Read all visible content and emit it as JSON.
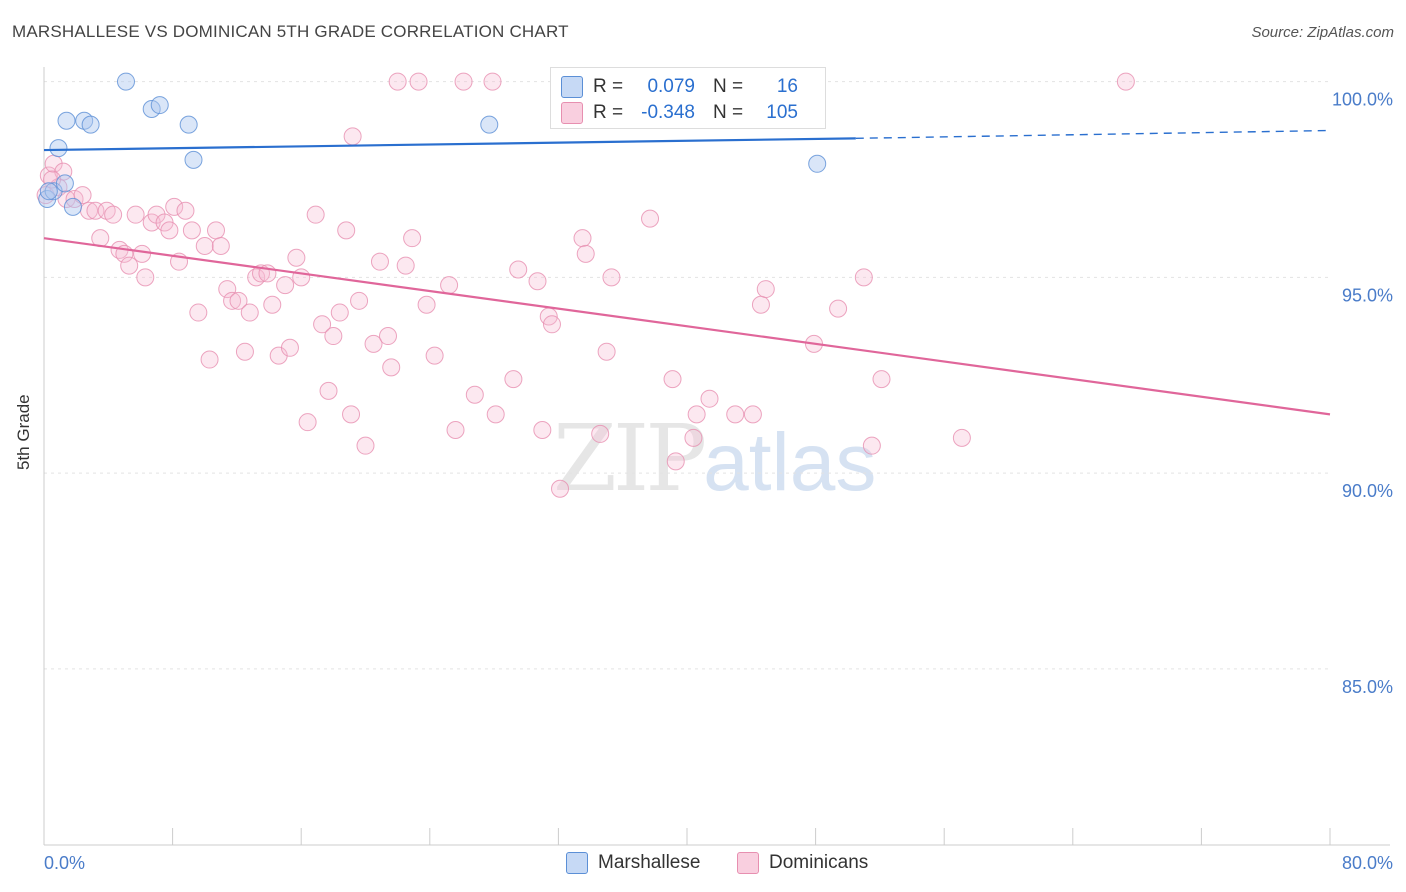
{
  "title": "MARSHALLESE VS DOMINICAN 5TH GRADE CORRELATION CHART",
  "source": "Source: ZipAtlas.com",
  "watermark": {
    "zip": "ZIP",
    "atlas": "atlas"
  },
  "legend_stats": [
    {
      "r_label": "R =",
      "r_value": "0.079",
      "n_label": "N =",
      "n_value": "16"
    },
    {
      "r_label": "R =",
      "r_value": "-0.348",
      "n_label": "N =",
      "n_value": "105"
    }
  ],
  "chart_data": {
    "type": "scatter",
    "title": "MARSHALLESE VS DOMINICAN 5TH GRADE CORRELATION CHART",
    "xlabel": "",
    "ylabel": "5th Grade",
    "xlim": [
      0,
      80
    ],
    "ylim": [
      80.5,
      100.5
    ],
    "x_tick_labels": [
      "0.0%",
      "80.0%"
    ],
    "y_ticks": [
      100,
      95,
      90,
      85
    ],
    "y_tick_labels": [
      "100.0%",
      "95.0%",
      "90.0%",
      "85.0%"
    ],
    "grid": true,
    "legend_position": "bottom",
    "colors": {
      "marshallese": "#5b8fd6",
      "dominicans": "#e78fb0",
      "marshallese_line": "#2a6fcf",
      "dominicans_line": "#e0669a",
      "tick_label": "#4a7cc9"
    },
    "series": [
      {
        "name": "Marshallese",
        "r": 0.079,
        "n": 16,
        "trend": {
          "x": [
            0,
            50.5
          ],
          "y": [
            98.25,
            98.55
          ],
          "dashed_to_x": 80,
          "dashed_y": 98.75
        },
        "points": [
          [
            0.2,
            97.0
          ],
          [
            0.6,
            97.2
          ],
          [
            0.9,
            98.3
          ],
          [
            1.3,
            97.4
          ],
          [
            1.4,
            99.0
          ],
          [
            1.8,
            96.8
          ],
          [
            2.5,
            99.0
          ],
          [
            2.9,
            98.9
          ],
          [
            5.1,
            100.0
          ],
          [
            6.7,
            99.3
          ],
          [
            7.2,
            99.4
          ],
          [
            9.0,
            98.9
          ],
          [
            9.3,
            98.0
          ],
          [
            27.7,
            98.9
          ],
          [
            48.1,
            97.9
          ],
          [
            0.3,
            97.2
          ]
        ]
      },
      {
        "name": "Dominicans",
        "r": -0.348,
        "n": 105,
        "trend": {
          "x": [
            0,
            80
          ],
          "y": [
            96.0,
            91.5
          ]
        },
        "points": [
          [
            0.1,
            97.1
          ],
          [
            0.3,
            97.6
          ],
          [
            0.6,
            97.9
          ],
          [
            0.9,
            97.3
          ],
          [
            1.2,
            97.7
          ],
          [
            1.4,
            97.0
          ],
          [
            1.9,
            97.0
          ],
          [
            2.4,
            97.1
          ],
          [
            2.8,
            96.7
          ],
          [
            3.2,
            96.7
          ],
          [
            3.5,
            96.0
          ],
          [
            3.9,
            96.7
          ],
          [
            4.3,
            96.6
          ],
          [
            4.7,
            95.7
          ],
          [
            5.0,
            95.6
          ],
          [
            5.3,
            95.3
          ],
          [
            5.7,
            96.6
          ],
          [
            6.1,
            95.6
          ],
          [
            6.3,
            95.0
          ],
          [
            6.7,
            96.4
          ],
          [
            7.0,
            96.6
          ],
          [
            7.5,
            96.4
          ],
          [
            7.8,
            96.2
          ],
          [
            8.1,
            96.8
          ],
          [
            8.4,
            95.4
          ],
          [
            8.8,
            96.7
          ],
          [
            9.2,
            96.2
          ],
          [
            9.6,
            94.1
          ],
          [
            10.0,
            95.8
          ],
          [
            10.3,
            92.9
          ],
          [
            10.7,
            96.2
          ],
          [
            11.0,
            95.8
          ],
          [
            11.4,
            94.7
          ],
          [
            11.7,
            94.4
          ],
          [
            12.1,
            94.4
          ],
          [
            12.5,
            93.1
          ],
          [
            12.8,
            94.1
          ],
          [
            13.2,
            95.0
          ],
          [
            13.5,
            95.1
          ],
          [
            13.9,
            95.1
          ],
          [
            14.2,
            94.3
          ],
          [
            14.6,
            93.0
          ],
          [
            15.0,
            94.8
          ],
          [
            15.3,
            93.2
          ],
          [
            15.7,
            95.5
          ],
          [
            16.0,
            95.0
          ],
          [
            16.4,
            91.3
          ],
          [
            16.9,
            96.6
          ],
          [
            17.3,
            93.8
          ],
          [
            17.7,
            92.1
          ],
          [
            18.0,
            93.5
          ],
          [
            18.4,
            94.1
          ],
          [
            18.8,
            96.2
          ],
          [
            19.1,
            91.5
          ],
          [
            19.2,
            98.6
          ],
          [
            19.6,
            94.4
          ],
          [
            20.0,
            90.7
          ],
          [
            20.5,
            93.3
          ],
          [
            20.9,
            95.4
          ],
          [
            21.4,
            93.5
          ],
          [
            21.6,
            92.7
          ],
          [
            22.0,
            100.0
          ],
          [
            22.5,
            95.3
          ],
          [
            22.9,
            96.0
          ],
          [
            23.3,
            100.0
          ],
          [
            23.8,
            94.3
          ],
          [
            24.3,
            93.0
          ],
          [
            25.2,
            94.8
          ],
          [
            25.6,
            91.1
          ],
          [
            26.1,
            100.0
          ],
          [
            26.8,
            92.0
          ],
          [
            27.9,
            100.0
          ],
          [
            28.1,
            91.5
          ],
          [
            29.2,
            92.4
          ],
          [
            29.5,
            95.2
          ],
          [
            30.7,
            94.9
          ],
          [
            31.0,
            91.1
          ],
          [
            31.4,
            94.0
          ],
          [
            31.6,
            93.8
          ],
          [
            32.1,
            89.6
          ],
          [
            32.6,
            100.0
          ],
          [
            33.5,
            96.0
          ],
          [
            33.7,
            95.6
          ],
          [
            34.6,
            91.0
          ],
          [
            35.0,
            93.1
          ],
          [
            35.3,
            95.0
          ],
          [
            37.7,
            96.5
          ],
          [
            39.1,
            92.4
          ],
          [
            39.3,
            90.3
          ],
          [
            40.4,
            90.9
          ],
          [
            40.6,
            91.5
          ],
          [
            41.4,
            91.9
          ],
          [
            43.0,
            91.5
          ],
          [
            44.1,
            91.5
          ],
          [
            44.2,
            100.0
          ],
          [
            44.6,
            94.3
          ],
          [
            44.9,
            94.7
          ],
          [
            47.9,
            93.3
          ],
          [
            49.4,
            94.2
          ],
          [
            51.0,
            95.0
          ],
          [
            51.5,
            90.7
          ],
          [
            52.1,
            92.4
          ],
          [
            57.1,
            90.9
          ],
          [
            67.3,
            100.0
          ],
          [
            0.5,
            97.5
          ]
        ]
      }
    ]
  }
}
